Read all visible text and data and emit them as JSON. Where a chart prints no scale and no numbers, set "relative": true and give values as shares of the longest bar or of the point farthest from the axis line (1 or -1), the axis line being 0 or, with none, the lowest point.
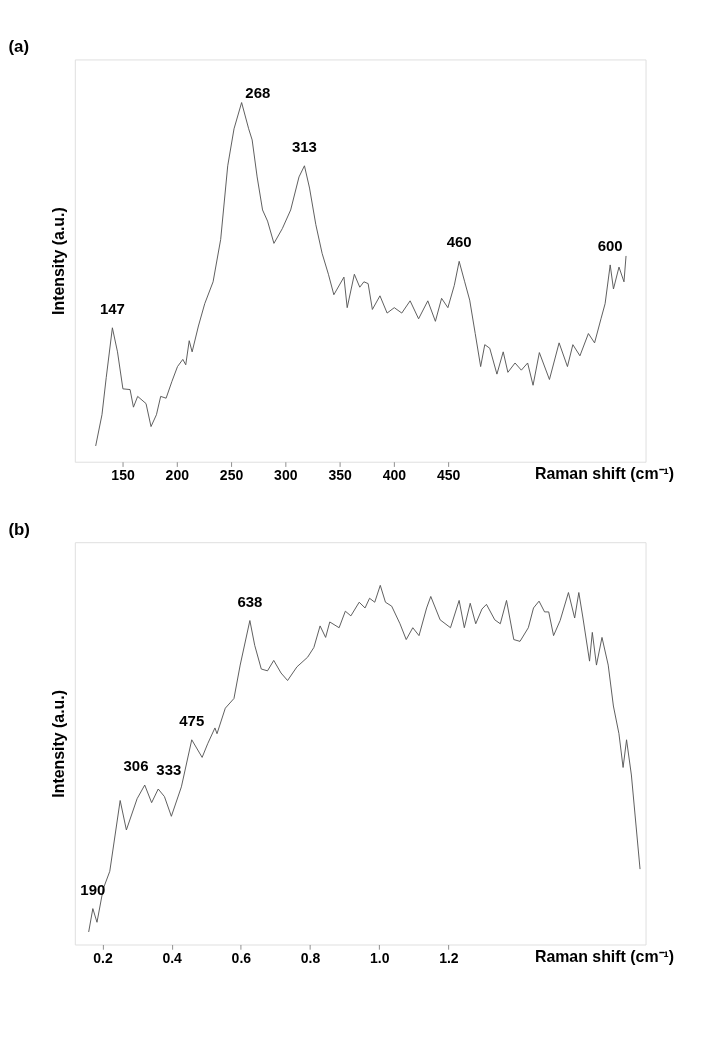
{
  "chart_data": [
    {
      "type": "line",
      "title": "(a)",
      "xlabel": "Raman shift (cm⁻¹)",
      "ylabel": "Intensity (a.u.)",
      "relative": true,
      "xlim": [
        106,
        632
      ],
      "xticks": [
        150,
        200,
        250,
        300,
        350,
        400,
        450
      ],
      "grid": false,
      "marker": "none",
      "line_style": "solid",
      "series": [
        {
          "color": "#555555",
          "x": [
            125.2,
            131,
            134.9,
            140.6,
            145.3,
            150.3,
            156.9,
            160,
            163.9,
            171.6,
            176.2,
            181.2,
            185.1,
            190.1,
            195.5,
            200.6,
            205.5,
            208.2,
            211.4,
            214.1,
            219.9,
            225.7,
            233.4,
            240.4,
            246.9,
            252.7,
            259.7,
            266.2,
            269.4,
            274,
            279,
            283.6,
            289.5,
            297.2,
            304.9,
            312.6,
            317.6,
            322.3,
            328.1,
            333.9,
            339.7,
            344.7,
            354,
            357,
            363.6,
            368.6,
            372.4,
            376.3,
            380.2,
            387.2,
            393.8,
            400.4,
            407.3,
            415,
            422.8,
            431.3,
            438.3,
            444,
            449.8,
            455.7,
            460.2,
            465.3,
            469.9,
            475,
            480,
            483.8,
            488.4,
            495,
            500.8,
            505.1,
            511.7,
            517.5,
            523.3,
            528.3,
            534.1,
            543.4,
            552.3,
            560,
            565,
            571.5,
            579.3,
            585,
            590.9,
            594.7,
            599.4,
            602.4,
            607.5,
            612.1,
            614
          ],
          "values": [
            0.044,
            0.131,
            0.234,
            0.373,
            0.306,
            0.203,
            0.201,
            0.152,
            0.182,
            0.162,
            0.098,
            0.131,
            0.182,
            0.177,
            0.224,
            0.265,
            0.285,
            0.27,
            0.337,
            0.306,
            0.378,
            0.44,
            0.501,
            0.619,
            0.824,
            0.927,
            1.0,
            0.927,
            0.896,
            0.793,
            0.701,
            0.67,
            0.608,
            0.649,
            0.701,
            0.793,
            0.824,
            0.762,
            0.66,
            0.58,
            0.522,
            0.465,
            0.514,
            0.429,
            0.522,
            0.486,
            0.501,
            0.496,
            0.424,
            0.462,
            0.414,
            0.429,
            0.414,
            0.448,
            0.398,
            0.448,
            0.391,
            0.455,
            0.429,
            0.491,
            0.558,
            0.501,
            0.45,
            0.357,
            0.265,
            0.326,
            0.316,
            0.244,
            0.306,
            0.249,
            0.275,
            0.255,
            0.275,
            0.213,
            0.304,
            0.229,
            0.331,
            0.265,
            0.326,
            0.295,
            0.357,
            0.331,
            0.398,
            0.44,
            0.548,
            0.481,
            0.542,
            0.501,
            0.573
          ]
        }
      ],
      "annotations": [
        {
          "text": "147",
          "x": 140.6,
          "y": 0.373
        },
        {
          "text": "268",
          "x": 259.7,
          "y": 1.0
        },
        {
          "text": "313",
          "x": 317.6,
          "y": 0.824
        },
        {
          "text": "460",
          "x": 460.2,
          "y": 0.558
        },
        {
          "text": "600",
          "x": 599.4,
          "y": 0.548
        }
      ]
    },
    {
      "type": "line",
      "title": "(b)",
      "xlabel": "Raman shift (cm⁻¹)",
      "ylabel": "Intensity (a.u.)",
      "relative": true,
      "xlim": [
        0.12,
        1.77
      ],
      "xticks": [
        0.2,
        0.4,
        0.6,
        0.8,
        {
          "value": 1.0,
          "label": "1.0"
        },
        1.2
      ],
      "grid": false,
      "marker": "none",
      "line_style": "solid",
      "series": [
        {
          "color": "#555555",
          "x": [
            0.16,
            0.172,
            0.184,
            0.202,
            0.221,
            0.251,
            0.269,
            0.3,
            0.322,
            0.342,
            0.361,
            0.379,
            0.399,
            0.428,
            0.458,
            0.488,
            0.504,
            0.525,
            0.531,
            0.555,
            0.58,
            0.598,
            0.626,
            0.64,
            0.659,
            0.677,
            0.695,
            0.716,
            0.735,
            0.762,
            0.793,
            0.811,
            0.829,
            0.845,
            0.857,
            0.884,
            0.902,
            0.918,
            0.942,
            0.959,
            0.972,
            0.987,
            1.003,
            1.018,
            1.036,
            1.06,
            1.078,
            1.097,
            1.115,
            1.137,
            1.149,
            1.176,
            1.206,
            1.231,
            1.246,
            1.263,
            1.279,
            1.297,
            1.31,
            1.334,
            1.35,
            1.368,
            1.389,
            1.407,
            1.431,
            1.446,
            1.462,
            1.478,
            1.49,
            1.504,
            1.523,
            1.547,
            1.565,
            1.577,
            1.589,
            1.608,
            1.616,
            1.628,
            1.644,
            1.662,
            1.677,
            1.693,
            1.705,
            1.715,
            1.729,
            1.754
          ],
          "values": [
            0.035,
            0.1,
            0.062,
            0.155,
            0.204,
            0.401,
            0.319,
            0.406,
            0.444,
            0.395,
            0.433,
            0.412,
            0.357,
            0.439,
            0.57,
            0.521,
            0.559,
            0.603,
            0.587,
            0.658,
            0.685,
            0.778,
            0.902,
            0.833,
            0.767,
            0.762,
            0.791,
            0.756,
            0.735,
            0.773,
            0.8,
            0.827,
            0.887,
            0.855,
            0.898,
            0.882,
            0.928,
            0.915,
            0.953,
            0.937,
            0.964,
            0.953,
            1.0,
            0.953,
            0.942,
            0.893,
            0.849,
            0.882,
            0.86,
            0.937,
            0.969,
            0.904,
            0.882,
            0.958,
            0.882,
            0.95,
            0.893,
            0.934,
            0.947,
            0.904,
            0.893,
            0.958,
            0.849,
            0.844,
            0.882,
            0.937,
            0.956,
            0.926,
            0.926,
            0.86,
            0.902,
            0.98,
            0.909,
            0.98,
            0.909,
            0.789,
            0.869,
            0.778,
            0.855,
            0.778,
            0.664,
            0.587,
            0.493,
            0.57,
            0.472,
            0.21
          ]
        }
      ],
      "annotations": [
        {
          "text": "190",
          "x": 0.172,
          "y": 0.1
        },
        {
          "text": "306",
          "x": 0.322,
          "y": 0.444
        },
        {
          "text": "333",
          "x": 0.361,
          "y": 0.433
        },
        {
          "text": "475",
          "x": 0.458,
          "y": 0.57
        },
        {
          "text": "638",
          "x": 0.626,
          "y": 0.902
        }
      ]
    }
  ]
}
